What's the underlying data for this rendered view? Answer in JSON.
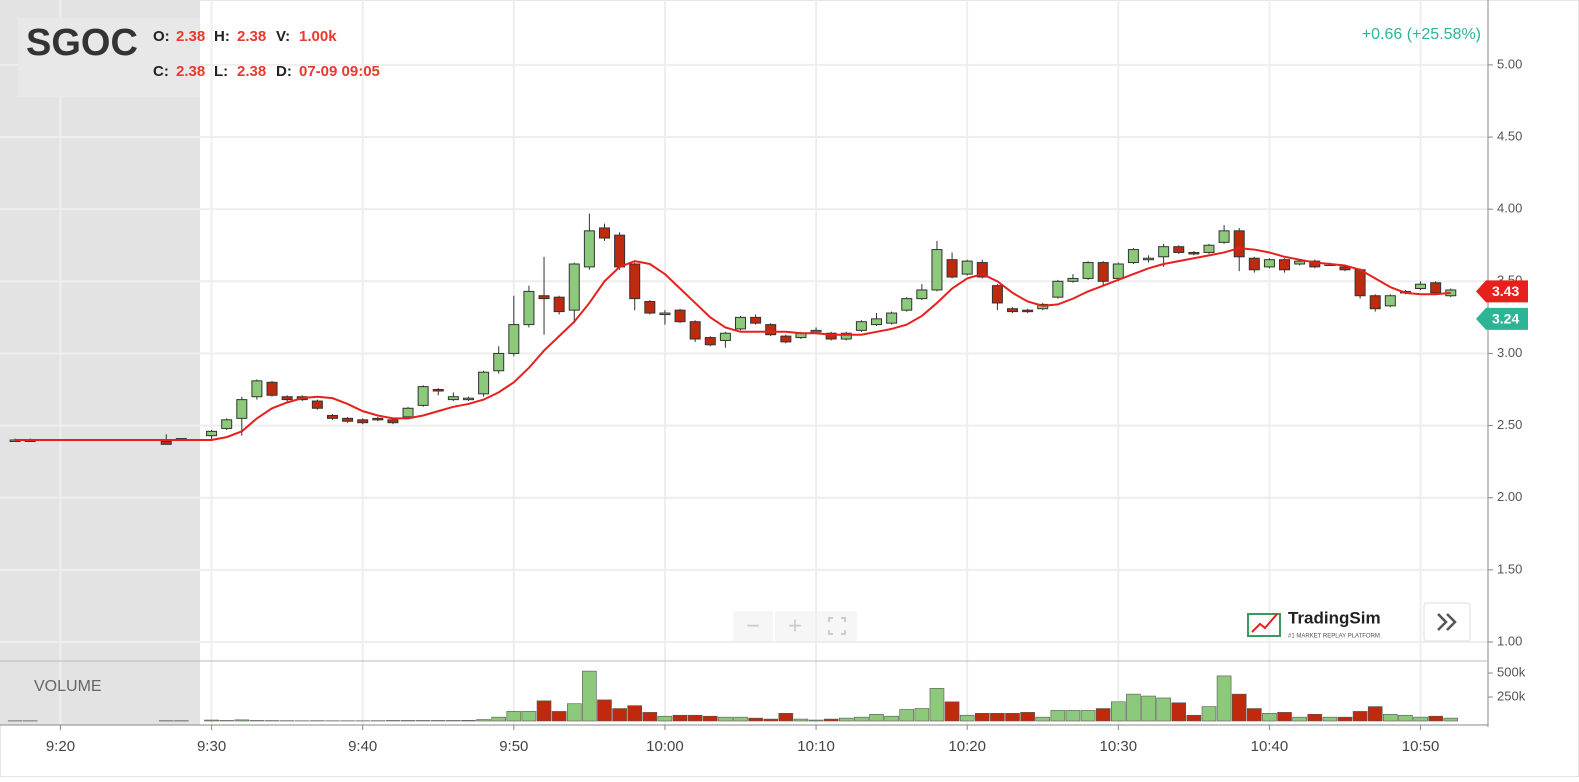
{
  "header": {
    "symbol": "SGOC",
    "o_label": "O:",
    "o_value": "2.38",
    "h_label": "H:",
    "h_value": "2.38",
    "v_label": "V:",
    "v_value": "1.00k",
    "c_label": "C:",
    "c_value": "2.38",
    "l_label": "L:",
    "l_value": "2.38",
    "d_label": "D:",
    "d_value": "07-09 09:05",
    "change": "+0.66 (+25.58%)"
  },
  "controls": {
    "zoom_out": "−",
    "zoom_in": "+"
  },
  "logo": {
    "name": "TradingSim",
    "tagline": "#1 MARKET REPLAY PLATFORM"
  },
  "chart_data": {
    "type": "candlestick",
    "up_color": "#8cc97a",
    "down_color": "#bf2a0e",
    "grid": true,
    "x": [
      "9:17",
      "9:18",
      "9:27",
      "9:28",
      "9:30",
      "9:31",
      "9:32",
      "9:33",
      "9:34",
      "9:35",
      "9:36",
      "9:37",
      "9:38",
      "9:39",
      "9:40",
      "9:41",
      "9:42",
      "9:43",
      "9:44",
      "9:45",
      "9:46",
      "9:47",
      "9:48",
      "9:49",
      "9:50",
      "9:51",
      "9:52",
      "9:53",
      "9:54",
      "9:55",
      "9:56",
      "9:57",
      "9:58",
      "9:59",
      "10:00",
      "10:01",
      "10:02",
      "10:03",
      "10:04",
      "10:05",
      "10:06",
      "10:07",
      "10:08",
      "10:09",
      "10:10",
      "10:11",
      "10:12",
      "10:13",
      "10:14",
      "10:15",
      "10:16",
      "10:17",
      "10:18",
      "10:19",
      "10:20",
      "10:21",
      "10:22",
      "10:23",
      "10:24",
      "10:25",
      "10:26",
      "10:27",
      "10:28",
      "10:29",
      "10:30",
      "10:31",
      "10:32",
      "10:33",
      "10:34",
      "10:35",
      "10:36",
      "10:37",
      "10:38",
      "10:39",
      "10:40",
      "10:41",
      "10:42",
      "10:43",
      "10:44",
      "10:45",
      "10:46",
      "10:47",
      "10:48",
      "10:49",
      "10:50",
      "10:51",
      "10:52"
    ],
    "open": [
      2.4,
      2.4,
      2.39,
      2.4,
      2.43,
      2.48,
      2.55,
      2.7,
      2.8,
      2.7,
      2.7,
      2.67,
      2.57,
      2.55,
      2.54,
      2.55,
      2.54,
      2.56,
      2.64,
      2.75,
      2.68,
      2.68,
      2.72,
      2.88,
      3.0,
      3.2,
      3.4,
      3.39,
      3.3,
      3.6,
      3.87,
      3.82,
      3.62,
      3.36,
      3.27,
      3.3,
      3.22,
      3.11,
      3.09,
      3.17,
      3.25,
      3.2,
      3.12,
      3.11,
      3.16,
      3.14,
      3.1,
      3.16,
      3.2,
      3.21,
      3.3,
      3.38,
      3.44,
      3.65,
      3.55,
      3.63,
      3.47,
      3.31,
      3.3,
      3.31,
      3.39,
      3.5,
      3.52,
      3.63,
      3.52,
      3.63,
      3.65,
      3.67,
      3.74,
      3.7,
      3.7,
      3.77,
      3.85,
      3.66,
      3.6,
      3.65,
      3.62,
      3.64,
      3.62,
      3.6,
      3.58,
      3.4,
      3.33,
      3.42,
      3.45,
      3.49,
      3.4
    ],
    "high": [
      2.41,
      2.41,
      2.44,
      2.41,
      2.47,
      2.55,
      2.7,
      2.82,
      2.81,
      2.71,
      2.71,
      2.68,
      2.58,
      2.56,
      2.55,
      2.56,
      2.55,
      2.63,
      2.78,
      2.76,
      2.73,
      2.7,
      2.88,
      3.05,
      3.4,
      3.47,
      3.67,
      3.4,
      3.63,
      3.97,
      3.9,
      3.84,
      3.63,
      3.37,
      3.3,
      3.31,
      3.23,
      3.12,
      3.15,
      3.26,
      3.27,
      3.21,
      3.13,
      3.15,
      3.18,
      3.15,
      3.15,
      3.23,
      3.28,
      3.29,
      3.39,
      3.48,
      3.78,
      3.7,
      3.65,
      3.65,
      3.48,
      3.32,
      3.31,
      3.35,
      3.51,
      3.55,
      3.64,
      3.64,
      3.63,
      3.73,
      3.68,
      3.76,
      3.75,
      3.71,
      3.76,
      3.89,
      3.87,
      3.67,
      3.66,
      3.66,
      3.65,
      3.65,
      3.63,
      3.61,
      3.59,
      3.41,
      3.41,
      3.44,
      3.5,
      3.5,
      3.45
    ],
    "low": [
      2.39,
      2.39,
      2.37,
      2.4,
      2.4,
      2.47,
      2.43,
      2.68,
      2.7,
      2.66,
      2.67,
      2.61,
      2.54,
      2.52,
      2.51,
      2.53,
      2.51,
      2.55,
      2.63,
      2.71,
      2.67,
      2.67,
      2.7,
      2.86,
      2.98,
      3.18,
      3.13,
      3.27,
      3.21,
      3.58,
      3.78,
      3.58,
      3.3,
      3.27,
      3.2,
      3.21,
      3.08,
      3.05,
      3.04,
      3.16,
      3.2,
      3.12,
      3.07,
      3.1,
      3.15,
      3.09,
      3.09,
      3.15,
      3.19,
      3.2,
      3.29,
      3.37,
      3.43,
      3.52,
      3.54,
      3.52,
      3.3,
      3.28,
      3.28,
      3.3,
      3.38,
      3.49,
      3.51,
      3.47,
      3.5,
      3.62,
      3.63,
      3.6,
      3.69,
      3.68,
      3.69,
      3.76,
      3.57,
      3.56,
      3.59,
      3.56,
      3.61,
      3.59,
      3.61,
      3.57,
      3.38,
      3.29,
      3.32,
      3.41,
      3.44,
      3.41,
      3.39
    ],
    "close": [
      2.4,
      2.39,
      2.37,
      2.41,
      2.46,
      2.54,
      2.68,
      2.81,
      2.71,
      2.68,
      2.68,
      2.62,
      2.55,
      2.53,
      2.52,
      2.54,
      2.52,
      2.62,
      2.77,
      2.74,
      2.7,
      2.69,
      2.87,
      3.0,
      3.2,
      3.43,
      3.38,
      3.29,
      3.62,
      3.85,
      3.8,
      3.6,
      3.38,
      3.28,
      3.28,
      3.22,
      3.1,
      3.06,
      3.14,
      3.25,
      3.21,
      3.13,
      3.08,
      3.14,
      3.16,
      3.1,
      3.14,
      3.22,
      3.24,
      3.28,
      3.38,
      3.44,
      3.72,
      3.53,
      3.64,
      3.53,
      3.35,
      3.29,
      3.29,
      3.34,
      3.5,
      3.52,
      3.63,
      3.5,
      3.62,
      3.72,
      3.66,
      3.74,
      3.7,
      3.69,
      3.75,
      3.85,
      3.67,
      3.58,
      3.65,
      3.58,
      3.64,
      3.6,
      3.62,
      3.58,
      3.4,
      3.31,
      3.4,
      3.43,
      3.48,
      3.42,
      3.44
    ],
    "ma": {
      "color": "#e8201c",
      "values": [
        2.4,
        2.4,
        2.4,
        2.4,
        2.4,
        2.42,
        2.46,
        2.55,
        2.62,
        2.66,
        2.69,
        2.7,
        2.69,
        2.65,
        2.6,
        2.57,
        2.55,
        2.55,
        2.57,
        2.6,
        2.63,
        2.65,
        2.68,
        2.73,
        2.8,
        2.9,
        3.02,
        3.12,
        3.22,
        3.35,
        3.5,
        3.6,
        3.64,
        3.62,
        3.55,
        3.45,
        3.35,
        3.25,
        3.18,
        3.15,
        3.15,
        3.15,
        3.15,
        3.14,
        3.14,
        3.13,
        3.13,
        3.13,
        3.15,
        3.17,
        3.2,
        3.26,
        3.35,
        3.45,
        3.52,
        3.55,
        3.5,
        3.42,
        3.36,
        3.33,
        3.34,
        3.38,
        3.43,
        3.47,
        3.51,
        3.55,
        3.59,
        3.62,
        3.64,
        3.66,
        3.68,
        3.7,
        3.73,
        3.72,
        3.7,
        3.67,
        3.65,
        3.63,
        3.62,
        3.61,
        3.58,
        3.52,
        3.46,
        3.42,
        3.41,
        3.41,
        3.42
      ]
    },
    "xlim": [
      "9:16",
      "10:54"
    ],
    "xticks": [
      "9:20",
      "9:30",
      "9:40",
      "9:50",
      "10:00",
      "10:10",
      "10:20",
      "10:30",
      "10:40",
      "10:50"
    ],
    "ylim": [
      0.875,
      5.45
    ],
    "yticks": [
      {
        "value": 1,
        "label": "1.00"
      },
      {
        "value": 1.5,
        "label": "1.50"
      },
      {
        "value": 2,
        "label": "2.00"
      },
      {
        "value": 2.5,
        "label": "2.50"
      },
      {
        "value": 3,
        "label": "3.00"
      },
      {
        "value": 3.5,
        "label": "3.50"
      },
      {
        "value": 4,
        "label": "4.00"
      },
      {
        "value": 4.5,
        "label": "4.50"
      },
      {
        "value": 5,
        "label": "5.00"
      }
    ],
    "price_labels": [
      {
        "value": 3.43,
        "color": "#e8201c"
      },
      {
        "value": 3.24,
        "color": "#2bb594"
      }
    ],
    "volume": {
      "label": "VOLUME",
      "ylim": [
        0,
        615000
      ],
      "yticks": [
        {
          "value": 250000,
          "label": "250k"
        },
        {
          "value": 500000,
          "label": "500k"
        }
      ],
      "values": [
        2000,
        2000,
        3000,
        3000,
        10000,
        5000,
        12000,
        5000,
        4000,
        3000,
        2000,
        3000,
        2000,
        2000,
        2000,
        3000,
        5000,
        5000,
        5000,
        5000,
        5000,
        6000,
        15000,
        40000,
        100000,
        100000,
        210000,
        100000,
        180000,
        520000,
        220000,
        130000,
        160000,
        90000,
        50000,
        60000,
        60000,
        50000,
        40000,
        40000,
        30000,
        20000,
        80000,
        20000,
        10000,
        20000,
        30000,
        40000,
        70000,
        50000,
        120000,
        130000,
        340000,
        200000,
        60000,
        80000,
        80000,
        80000,
        90000,
        40000,
        110000,
        110000,
        110000,
        130000,
        200000,
        280000,
        260000,
        240000,
        190000,
        60000,
        150000,
        470000,
        280000,
        130000,
        80000,
        90000,
        40000,
        70000,
        40000,
        40000,
        100000,
        150000,
        70000,
        60000,
        40000,
        50000,
        30000
      ]
    }
  }
}
